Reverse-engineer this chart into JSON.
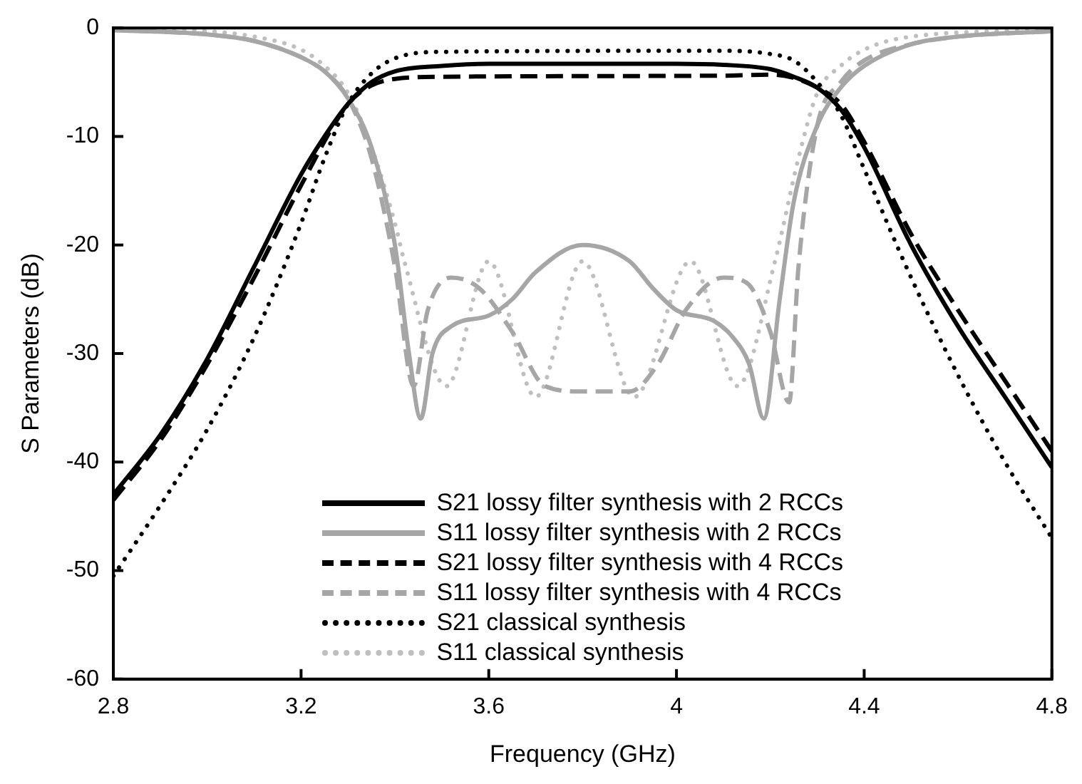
{
  "chart_data": {
    "type": "line",
    "xlabel": "Frequency (GHz)",
    "ylabel": "S Parameters (dB)",
    "xlim": [
      2.8,
      4.8
    ],
    "xticks": [
      2.8,
      3.2,
      3.6,
      4,
      4.4,
      4.8
    ],
    "ylim": [
      -60,
      0
    ],
    "yticks": [
      -60,
      -50,
      -40,
      -30,
      -20,
      -10,
      0
    ],
    "grid": false,
    "legend": "bottom",
    "marker": "none",
    "series": [
      {
        "name": "S21 lossy filter synthesis with 2 RCCs",
        "color": "#000000",
        "line_style": "solid",
        "x": [
          2.8,
          2.9,
          3.0,
          3.1,
          3.2,
          3.25,
          3.3,
          3.35,
          3.4,
          3.5,
          3.6,
          4.0,
          4.1,
          4.2,
          4.25,
          4.3,
          4.35,
          4.4,
          4.5,
          4.6,
          4.7,
          4.8
        ],
        "values": [
          -43,
          -37.5,
          -30.5,
          -22,
          -13.5,
          -10,
          -7,
          -5,
          -4,
          -3.5,
          -3.3,
          -3.3,
          -3.4,
          -3.8,
          -4.5,
          -5.5,
          -7.5,
          -11,
          -20,
          -27.5,
          -34,
          -40.5
        ]
      },
      {
        "name": "S11 lossy filter synthesis with 2 RCCs",
        "color": "#a6a6a6",
        "line_style": "solid",
        "x": [
          2.8,
          3.0,
          3.1,
          3.2,
          3.25,
          3.3,
          3.35,
          3.4,
          3.43,
          3.455,
          3.48,
          3.52,
          3.6,
          3.65,
          3.7,
          3.8,
          3.9,
          3.95,
          4.0,
          4.08,
          4.12,
          4.155,
          4.186,
          4.22,
          4.25,
          4.3,
          4.35,
          4.4,
          4.5,
          4.6,
          4.8
        ],
        "values": [
          -0.2,
          -0.6,
          -1.2,
          -2.7,
          -4,
          -6.5,
          -11,
          -20,
          -30,
          -36,
          -30,
          -27.5,
          -26.5,
          -25,
          -22.5,
          -20,
          -21.5,
          -24,
          -26,
          -27,
          -28.5,
          -31,
          -36,
          -25,
          -16,
          -9,
          -5.5,
          -3.5,
          -1.5,
          -0.8,
          -0.3
        ]
      },
      {
        "name": "S21 lossy filter synthesis with 4 RCCs",
        "color": "#000000",
        "line_style": "dashed",
        "x": [
          2.8,
          2.9,
          3.0,
          3.1,
          3.2,
          3.3,
          3.35,
          3.4,
          3.5,
          4.1,
          4.2,
          4.25,
          4.3,
          4.35,
          4.4,
          4.5,
          4.6,
          4.7,
          4.8
        ],
        "values": [
          -43.5,
          -38,
          -31,
          -23,
          -14.5,
          -7,
          -5.3,
          -4.7,
          -4.5,
          -4.4,
          -4.3,
          -4.6,
          -5.5,
          -7,
          -10.5,
          -19,
          -26,
          -32.5,
          -39
        ]
      },
      {
        "name": "S11 lossy filter synthesis with 4 RCCs",
        "color": "#a6a6a6",
        "line_style": "dashed",
        "x": [
          2.8,
          3.0,
          3.1,
          3.2,
          3.25,
          3.3,
          3.35,
          3.4,
          3.44,
          3.47,
          3.52,
          3.58,
          3.65,
          3.72,
          3.8,
          3.9,
          3.96,
          4.02,
          4.1,
          4.15,
          4.2,
          4.24,
          4.26,
          4.3,
          4.35,
          4.4,
          4.5,
          4.6,
          4.8
        ],
        "values": [
          -0.2,
          -0.6,
          -1.2,
          -2.7,
          -4,
          -6.5,
          -12,
          -22,
          -33,
          -26,
          -23,
          -24,
          -28,
          -33,
          -33.5,
          -33.5,
          -31,
          -26,
          -23,
          -23.5,
          -28,
          -34.5,
          -22,
          -9,
          -5,
          -3,
          -1.5,
          -0.8,
          -0.3
        ]
      },
      {
        "name": "S21 classical synthesis",
        "color": "#000000",
        "line_style": "dotted",
        "x": [
          2.8,
          2.9,
          3.0,
          3.1,
          3.2,
          3.25,
          3.3,
          3.35,
          3.4,
          3.5,
          4.1,
          4.2,
          4.25,
          4.3,
          4.35,
          4.4,
          4.5,
          4.6,
          4.7,
          4.8
        ],
        "values": [
          -50.5,
          -44,
          -37,
          -28.5,
          -18,
          -12,
          -7,
          -4.2,
          -2.8,
          -2.2,
          -2.1,
          -2.4,
          -3,
          -5,
          -8,
          -13,
          -23,
          -32,
          -40,
          -47
        ]
      },
      {
        "name": "S11 classical synthesis",
        "color": "#bfbfbf",
        "line_style": "dotted",
        "x": [
          2.8,
          3.0,
          3.1,
          3.2,
          3.25,
          3.3,
          3.35,
          3.4,
          3.42,
          3.51,
          3.6,
          3.7,
          3.8,
          3.91,
          4.03,
          4.13,
          4.21,
          4.26,
          4.3,
          4.35,
          4.4,
          4.5,
          4.8
        ],
        "values": [
          -0.1,
          -0.3,
          -0.8,
          -2,
          -3.5,
          -6,
          -11,
          -18,
          -21.5,
          -33,
          -21.5,
          -34,
          -21.5,
          -34,
          -21.5,
          -33,
          -21.5,
          -12,
          -6,
          -3.5,
          -2,
          -0.8,
          -0.2
        ]
      }
    ]
  }
}
